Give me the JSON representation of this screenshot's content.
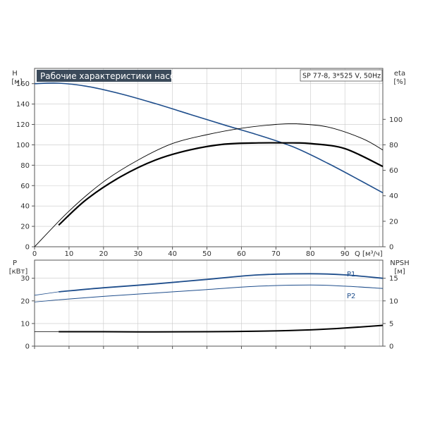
{
  "chart_data": [
    {
      "type": "line",
      "title": "Рабочие характеристики насоса",
      "info_label": "SP 77-8, 3*525 V, 50Hz",
      "xlabel": "Q [м³/ч]",
      "ylabel_left": {
        "name": "H",
        "unit": "[м]"
      },
      "ylabel_right": {
        "name": "eta",
        "unit": "[%]"
      },
      "xlim": [
        0,
        101
      ],
      "ylim_left": [
        0,
        175
      ],
      "ylim_right": [
        0,
        140
      ],
      "x_ticks": [
        0,
        10,
        20,
        30,
        40,
        50,
        60,
        70,
        80,
        90
      ],
      "y_ticks_left": [
        0,
        20,
        40,
        60,
        80,
        100,
        120,
        140,
        160
      ],
      "y_ticks_right": [
        0,
        20,
        40,
        60,
        80,
        100
      ],
      "grid": true,
      "colors": {
        "head": "#1f4e8c",
        "eta": "#000000"
      },
      "series": [
        {
          "axis": "left",
          "role": "head",
          "x": [
            0,
            7,
            15,
            25,
            35,
            45,
            55,
            65,
            75,
            85,
            95,
            101
          ],
          "y": [
            160,
            160.5,
            157.5,
            150,
            140.5,
            130,
            119.5,
            109.5,
            98,
            82,
            64,
            53
          ]
        },
        {
          "axis": "right",
          "role": "eta-thin",
          "x": [
            0,
            10,
            20,
            30,
            40,
            50,
            60,
            70,
            76,
            85,
            95,
            101
          ],
          "y": [
            0,
            28,
            51,
            68,
            81,
            88,
            93,
            96,
            96.5,
            94,
            85,
            76
          ]
        },
        {
          "axis": "right",
          "role": "eta-bold",
          "x": [
            7,
            15,
            25,
            35,
            45,
            55,
            65,
            75,
            80,
            90,
            101
          ],
          "y": [
            17,
            37,
            55,
            68,
            76,
            80.5,
            81.5,
            81.5,
            81,
            77,
            63
          ]
        }
      ]
    },
    {
      "type": "line",
      "ylabel_left": {
        "name": "P",
        "unit": "[кВт]"
      },
      "ylabel_right": {
        "name": "NPSH",
        "unit": "[м]"
      },
      "xlim": [
        0,
        101
      ],
      "ylim_left": [
        0,
        38
      ],
      "ylim_right": [
        0,
        19
      ],
      "y_ticks_left": [
        0,
        10,
        20,
        30
      ],
      "y_ticks_right": [
        0,
        5,
        10,
        15
      ],
      "grid": true,
      "colors": {
        "power": "#1f4e8c",
        "npsh": "#000000"
      },
      "series": [
        {
          "name": "P1",
          "axis": "left",
          "role": "p1",
          "x": [
            0,
            7,
            20,
            35,
            50,
            65,
            80,
            90,
            101
          ],
          "y": [
            22.5,
            24,
            25.8,
            27.5,
            29.5,
            31.5,
            32,
            31.5,
            30
          ]
        },
        {
          "name": "P2",
          "axis": "left",
          "role": "p2",
          "x": [
            0,
            7,
            20,
            35,
            50,
            65,
            80,
            90,
            101
          ],
          "y": [
            19.5,
            20.5,
            22,
            23.5,
            25,
            26.5,
            27,
            26.5,
            25.5
          ]
        },
        {
          "axis": "right",
          "role": "npsh",
          "x": [
            0,
            7,
            20,
            35,
            50,
            65,
            80,
            90,
            101
          ],
          "y": [
            3.2,
            3.2,
            3.2,
            3.15,
            3.2,
            3.3,
            3.6,
            4.0,
            4.6
          ]
        }
      ]
    }
  ]
}
